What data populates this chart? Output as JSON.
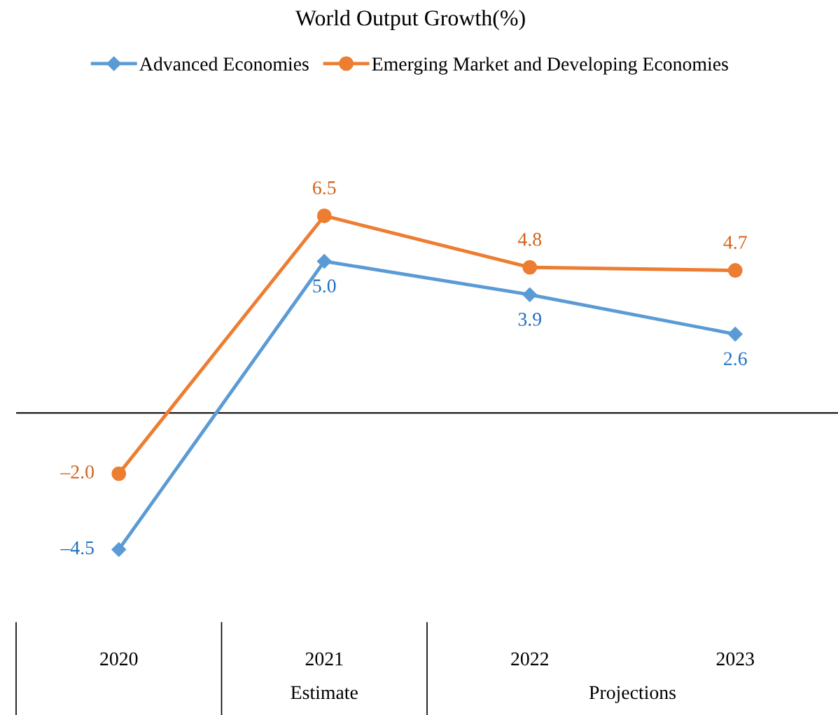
{
  "chart_data": {
    "type": "line",
    "title": "World Output Growth(%)",
    "categories": [
      "2020",
      "2021",
      "2022",
      "2023"
    ],
    "series": [
      {
        "name": "Advanced Economies",
        "color": "#5b9bd5",
        "marker": "diamond",
        "values": [
          -4.5,
          5.0,
          3.9,
          2.6
        ],
        "value_labels": [
          "–4.5",
          "5.0",
          "3.9",
          "2.6"
        ]
      },
      {
        "name": "Emerging Market and Developing Economies",
        "color": "#ed7d31",
        "marker": "circle",
        "values": [
          -2.0,
          6.5,
          4.8,
          4.7
        ],
        "value_labels": [
          "–2.0",
          "6.5",
          "4.8",
          "4.7"
        ]
      }
    ],
    "ref_lines": [
      {
        "axis": "y",
        "value": 0,
        "color": "#000000"
      }
    ],
    "annotations": [
      "Estimate",
      "Projections"
    ],
    "legend": "top",
    "grid": false,
    "line_style": "solid",
    "tick_labels": "x"
  }
}
